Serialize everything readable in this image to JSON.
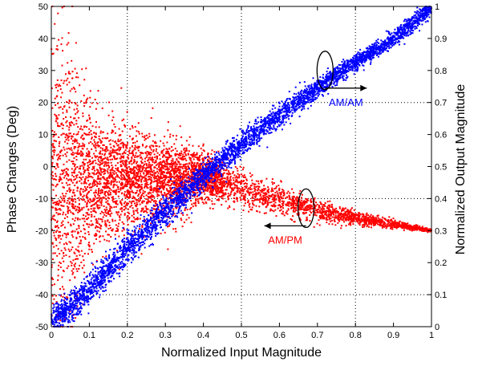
{
  "chart_data": {
    "type": "scatter",
    "title": "",
    "xlabel": "Normalized Input Magnitude",
    "ylabel_left": "Phase Changes (Deg)",
    "ylabel_right": "Normalized Output Magnitude",
    "xlim": [
      0,
      1
    ],
    "ylim_left": [
      -50,
      50
    ],
    "ylim_right": [
      0,
      1
    ],
    "grid": true,
    "x_ticks": [
      0,
      0.1,
      0.2,
      0.3,
      0.4,
      0.5,
      0.6,
      0.7,
      0.8,
      0.9,
      1
    ],
    "x_tick_labels": [
      "0",
      "0.1",
      "0.2",
      "0.3",
      "0.4",
      "0.5",
      "0.6",
      "0.7",
      "0.8",
      "0.9",
      "1"
    ],
    "y_left_ticks": [
      -50,
      -40,
      -30,
      -20,
      -10,
      0,
      10,
      20,
      30,
      40,
      50
    ],
    "y_left_tick_labels": [
      "-50",
      "-40",
      "-30",
      "-20",
      "-10",
      "0",
      "10",
      "20",
      "30",
      "40",
      "50"
    ],
    "y_right_ticks": [
      0,
      0.1,
      0.2,
      0.3,
      0.4,
      0.5,
      0.6,
      0.7,
      0.8,
      0.9,
      1
    ],
    "y_right_tick_labels": [
      "0",
      "0.1",
      "0.2",
      "0.3",
      "0.4",
      "0.5",
      "0.6",
      "0.7",
      "0.8",
      "0.9",
      "1"
    ],
    "series": [
      {
        "name": "AM/AM",
        "axis": "right",
        "color": "#0000ff",
        "x": [
          0.0,
          0.05,
          0.1,
          0.15,
          0.2,
          0.25,
          0.3,
          0.35,
          0.4,
          0.45,
          0.5,
          0.55,
          0.6,
          0.65,
          0.7,
          0.75,
          0.8,
          0.85,
          0.9,
          0.95,
          1.0
        ],
        "y": [
          0.02,
          0.06,
          0.12,
          0.18,
          0.24,
          0.3,
          0.36,
          0.415,
          0.47,
          0.52,
          0.57,
          0.615,
          0.66,
          0.705,
          0.745,
          0.785,
          0.825,
          0.86,
          0.9,
          0.945,
          1.0
        ],
        "spread": [
          0.03,
          0.035,
          0.035,
          0.035,
          0.035,
          0.035,
          0.035,
          0.03,
          0.03,
          0.03,
          0.028,
          0.026,
          0.024,
          0.022,
          0.02,
          0.018,
          0.015,
          0.013,
          0.012,
          0.01,
          0.005
        ]
      },
      {
        "name": "AM/PM",
        "axis": "left",
        "color": "#ff0000",
        "x": [
          0.0,
          0.05,
          0.1,
          0.15,
          0.2,
          0.25,
          0.3,
          0.35,
          0.4,
          0.45,
          0.5,
          0.55,
          0.6,
          0.65,
          0.7,
          0.75,
          0.8,
          0.85,
          0.9,
          0.95,
          1.0
        ],
        "y": [
          -5,
          -5,
          -5,
          -5,
          -4,
          -4,
          -4,
          -4,
          -3,
          -5,
          -7,
          -9,
          -10.5,
          -12,
          -13.5,
          -15,
          -16,
          -17,
          -18,
          -19,
          -20
        ],
        "spread": [
          45,
          40,
          22,
          16,
          14,
          12,
          10,
          9,
          7,
          6,
          5,
          4.5,
          4,
          3.5,
          3,
          2.5,
          2,
          1.5,
          1.2,
          0.8,
          0.5
        ]
      }
    ],
    "annotations": [
      {
        "label": "AM/AM",
        "color": "#0000ff",
        "x": 0.72,
        "y_right": 0.8,
        "arrow": "right",
        "target_series": "AM/AM"
      },
      {
        "label": "AM/PM",
        "color": "#ff0000",
        "x": 0.67,
        "y_left": -13,
        "arrow": "left",
        "target_series": "AM/PM"
      }
    ]
  }
}
